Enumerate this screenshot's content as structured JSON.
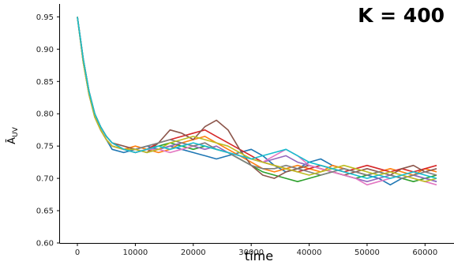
{
  "chart_data": {
    "type": "line",
    "title": "",
    "annotation": "K = 400",
    "xlabel": "time",
    "ylabel": "Ā_UV",
    "ylabel_main": "Ā",
    "ylabel_sub": "UV",
    "xlim": [
      -3000,
      65000
    ],
    "ylim": [
      0.6,
      0.97
    ],
    "xticks": [
      0,
      10000,
      20000,
      30000,
      40000,
      50000,
      60000
    ],
    "xtick_labels": [
      "0",
      "10000",
      "20000",
      "30000",
      "40000",
      "50000",
      "60000"
    ],
    "yticks": [
      0.6,
      0.65,
      0.7,
      0.75,
      0.8,
      0.85,
      0.9,
      0.95
    ],
    "ytick_labels": [
      "0.60",
      "0.65",
      "0.70",
      "0.75",
      "0.80",
      "0.85",
      "0.90",
      "0.95"
    ],
    "grid": false,
    "legend": "none",
    "x": [
      0,
      1000,
      2000,
      3000,
      4000,
      5000,
      6000,
      8000,
      10000,
      12000,
      14000,
      16000,
      18000,
      20000,
      22000,
      24000,
      26000,
      28000,
      30000,
      32000,
      34000,
      36000,
      38000,
      40000,
      42000,
      44000,
      46000,
      48000,
      50000,
      52000,
      54000,
      56000,
      58000,
      60000,
      62000
    ],
    "series": [
      {
        "color": "#1f77b4",
        "values": [
          0.95,
          0.88,
          0.83,
          0.795,
          0.775,
          0.76,
          0.745,
          0.74,
          0.745,
          0.75,
          0.745,
          0.75,
          0.745,
          0.74,
          0.735,
          0.73,
          0.735,
          0.74,
          0.745,
          0.735,
          0.72,
          0.71,
          0.715,
          0.725,
          0.73,
          0.72,
          0.715,
          0.71,
          0.705,
          0.7,
          0.69,
          0.7,
          0.705,
          0.7,
          0.695
        ]
      },
      {
        "color": "#ff7f0e",
        "values": [
          0.95,
          0.885,
          0.835,
          0.8,
          0.78,
          0.765,
          0.755,
          0.745,
          0.75,
          0.745,
          0.74,
          0.745,
          0.755,
          0.76,
          0.765,
          0.755,
          0.745,
          0.735,
          0.725,
          0.715,
          0.71,
          0.715,
          0.72,
          0.715,
          0.71,
          0.72,
          0.715,
          0.71,
          0.705,
          0.71,
          0.715,
          0.71,
          0.705,
          0.715,
          0.71
        ]
      },
      {
        "color": "#2ca02c",
        "values": [
          0.95,
          0.88,
          0.83,
          0.795,
          0.775,
          0.76,
          0.75,
          0.745,
          0.74,
          0.745,
          0.75,
          0.755,
          0.75,
          0.745,
          0.75,
          0.745,
          0.74,
          0.73,
          0.72,
          0.71,
          0.705,
          0.7,
          0.695,
          0.7,
          0.705,
          0.71,
          0.705,
          0.7,
          0.705,
          0.71,
          0.705,
          0.7,
          0.695,
          0.7,
          0.705
        ]
      },
      {
        "color": "#d62728",
        "values": [
          0.95,
          0.885,
          0.835,
          0.8,
          0.78,
          0.765,
          0.755,
          0.745,
          0.74,
          0.745,
          0.755,
          0.76,
          0.765,
          0.77,
          0.775,
          0.765,
          0.755,
          0.745,
          0.735,
          0.725,
          0.72,
          0.715,
          0.71,
          0.715,
          0.72,
          0.715,
          0.71,
          0.715,
          0.72,
          0.715,
          0.71,
          0.715,
          0.71,
          0.715,
          0.72
        ]
      },
      {
        "color": "#9467bd",
        "values": [
          0.95,
          0.88,
          0.83,
          0.795,
          0.775,
          0.76,
          0.75,
          0.745,
          0.745,
          0.74,
          0.745,
          0.75,
          0.755,
          0.75,
          0.745,
          0.75,
          0.74,
          0.735,
          0.73,
          0.725,
          0.73,
          0.735,
          0.725,
          0.72,
          0.715,
          0.71,
          0.705,
          0.7,
          0.695,
          0.7,
          0.705,
          0.7,
          0.705,
          0.7,
          0.695
        ]
      },
      {
        "color": "#8c564b",
        "values": [
          0.95,
          0.885,
          0.835,
          0.8,
          0.78,
          0.765,
          0.755,
          0.75,
          0.745,
          0.74,
          0.755,
          0.775,
          0.77,
          0.76,
          0.78,
          0.79,
          0.775,
          0.745,
          0.72,
          0.705,
          0.7,
          0.71,
          0.715,
          0.72,
          0.715,
          0.71,
          0.705,
          0.71,
          0.715,
          0.71,
          0.705,
          0.715,
          0.72,
          0.71,
          0.715
        ]
      },
      {
        "color": "#e377c2",
        "values": [
          0.95,
          0.88,
          0.83,
          0.795,
          0.775,
          0.76,
          0.75,
          0.745,
          0.74,
          0.745,
          0.745,
          0.74,
          0.745,
          0.75,
          0.755,
          0.745,
          0.74,
          0.735,
          0.73,
          0.725,
          0.735,
          0.745,
          0.735,
          0.72,
          0.715,
          0.71,
          0.705,
          0.7,
          0.69,
          0.695,
          0.7,
          0.705,
          0.7,
          0.695,
          0.69
        ]
      },
      {
        "color": "#7f7f7f",
        "values": [
          0.95,
          0.885,
          0.835,
          0.8,
          0.78,
          0.765,
          0.755,
          0.745,
          0.745,
          0.75,
          0.755,
          0.76,
          0.755,
          0.75,
          0.755,
          0.745,
          0.74,
          0.73,
          0.72,
          0.715,
          0.715,
          0.72,
          0.715,
          0.71,
          0.705,
          0.71,
          0.715,
          0.71,
          0.705,
          0.71,
          0.705,
          0.7,
          0.705,
          0.71,
          0.705
        ]
      },
      {
        "color": "#bcbd22",
        "values": [
          0.95,
          0.88,
          0.83,
          0.795,
          0.775,
          0.76,
          0.75,
          0.745,
          0.745,
          0.74,
          0.745,
          0.755,
          0.76,
          0.765,
          0.76,
          0.755,
          0.75,
          0.74,
          0.73,
          0.725,
          0.72,
          0.715,
          0.71,
          0.705,
          0.71,
          0.715,
          0.72,
          0.715,
          0.71,
          0.705,
          0.71,
          0.705,
          0.7,
          0.695,
          0.7
        ]
      },
      {
        "color": "#17becf",
        "values": [
          0.95,
          0.885,
          0.835,
          0.8,
          0.78,
          0.765,
          0.755,
          0.745,
          0.74,
          0.745,
          0.75,
          0.745,
          0.75,
          0.755,
          0.75,
          0.745,
          0.74,
          0.735,
          0.73,
          0.735,
          0.74,
          0.745,
          0.735,
          0.725,
          0.72,
          0.715,
          0.71,
          0.705,
          0.7,
          0.705,
          0.7,
          0.705,
          0.71,
          0.705,
          0.7
        ]
      }
    ]
  }
}
